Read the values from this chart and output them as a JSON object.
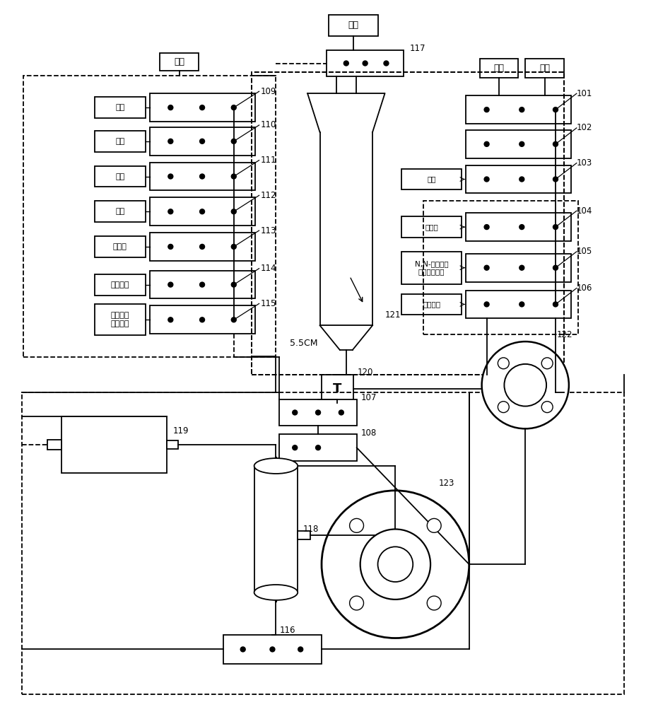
{
  "bg_color": "#ffffff",
  "labels_left": [
    "纯水",
    "样品",
    "标液",
    "废液",
    "硫酸锌",
    "氢氧化钠",
    "硫酸和双\n氧水溶液"
  ],
  "labels_right": [
    "",
    "",
    "废液",
    "氯化铁",
    "N,N-二甲基对\n苯二胺盐酸盐",
    "氢氧化钠"
  ],
  "nums_left": [
    "109",
    "110",
    "111",
    "112",
    "113",
    "114",
    "115"
  ],
  "nums_right": [
    "101",
    "102",
    "103",
    "104",
    "105",
    "106"
  ],
  "label_air_left": "空气",
  "label_waste_top": "废液",
  "label_pure_water": "纯水",
  "label_air_right": "空气",
  "label_waste_right": "废液",
  "vessel_label": "5.5CM",
  "vessel_num": "121",
  "temp_label": "T",
  "nums_other": {
    "116": "116",
    "117": "117",
    "118": "118",
    "119": "119",
    "120": "120",
    "122": "122",
    "123": "123"
  }
}
